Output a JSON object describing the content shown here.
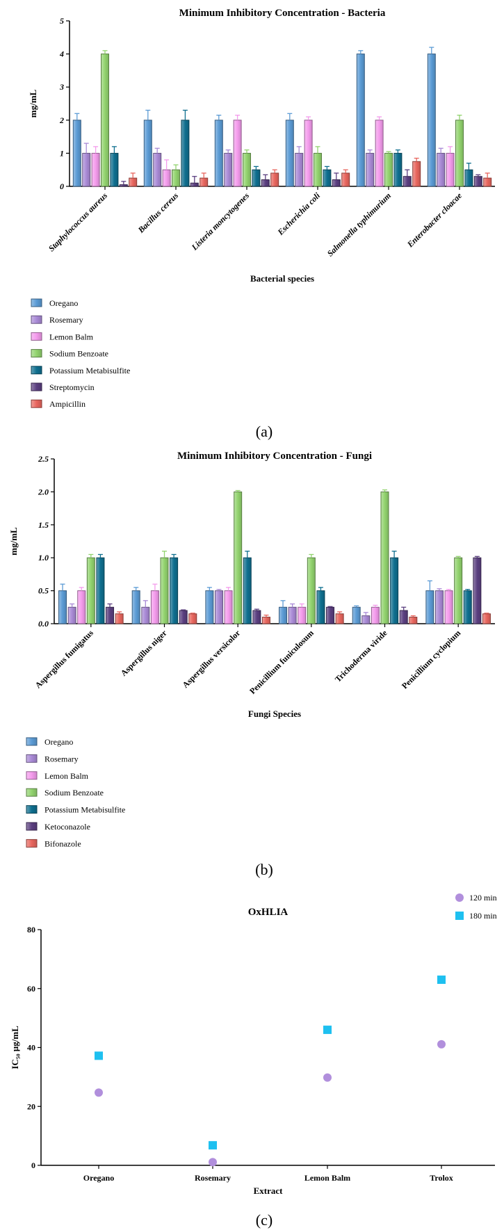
{
  "panels": {
    "a_label": "(a)",
    "b_label": "(b)",
    "c_label": "(c)"
  },
  "colors": {
    "Oregano": "#5b9bd5",
    "Rosemary": "#a98ad6",
    "Lemon Balm": "#f49bec",
    "Sodium Benzoate": "#92d36e",
    "Potassium Metabisulfite": "#0f6f8f",
    "Streptomycin": "#5b3f80",
    "Ampicillin": "#e8665e",
    "Ketoconazole": "#5b3f80",
    "Bifonazole": "#e8665e",
    "scatter_120": "#b18fdc",
    "scatter_180": "#1ec0f0"
  },
  "chart_data": [
    {
      "type": "bar",
      "title": "Minimum Inhibitory Concentration - Bacteria",
      "xlabel": "Bacterial species",
      "ylabel": "mg/mL",
      "ylim": [
        0,
        5
      ],
      "yticks": [
        "0",
        "1",
        "2",
        "3",
        "4",
        "5"
      ],
      "grid": false,
      "legend": "bottom-left",
      "categories": [
        "Staphylococcus aureus",
        "Bacillus cereus",
        "Listeria moncytogenes",
        "Escherichia coli",
        "Salmonella typhimurium",
        "Enterobacter cloacae"
      ],
      "series": [
        {
          "name": "Oregano",
          "values": [
            2,
            2,
            2,
            2,
            4,
            4
          ],
          "errors": [
            0.2,
            0.3,
            0.15,
            0.2,
            0.1,
            0.2
          ]
        },
        {
          "name": "Rosemary",
          "values": [
            1,
            1,
            1,
            1,
            1,
            1
          ],
          "errors": [
            0.3,
            0.15,
            0.1,
            0.2,
            0.1,
            0.15
          ]
        },
        {
          "name": "Lemon Balm",
          "values": [
            1,
            0.5,
            2,
            2,
            2,
            1
          ],
          "errors": [
            0.2,
            0.3,
            0.15,
            0.1,
            0.1,
            0.2
          ]
        },
        {
          "name": "Sodium Benzoate",
          "values": [
            4,
            0.5,
            1,
            1,
            1,
            2
          ],
          "errors": [
            0.1,
            0.15,
            0.1,
            0.2,
            0.05,
            0.15
          ]
        },
        {
          "name": "Potassium Metabisulfite",
          "values": [
            1,
            2,
            0.5,
            0.5,
            1,
            0.5
          ],
          "errors": [
            0.2,
            0.3,
            0.1,
            0.1,
            0.1,
            0.2
          ]
        },
        {
          "name": "Streptomycin",
          "values": [
            0.05,
            0.1,
            0.2,
            0.2,
            0.3,
            0.3
          ],
          "errors": [
            0.1,
            0.2,
            0.15,
            0.2,
            0.2,
            0.05
          ]
        },
        {
          "name": "Ampicillin",
          "values": [
            0.25,
            0.25,
            0.4,
            0.4,
            0.75,
            0.25
          ],
          "errors": [
            0.15,
            0.15,
            0.1,
            0.1,
            0.1,
            0.15
          ]
        }
      ]
    },
    {
      "type": "bar",
      "title": "Minimum Inhibitory Concentration - Fungi",
      "xlabel": "Fungi Species",
      "ylabel": "mg/mL",
      "ylim": [
        0,
        2.5
      ],
      "yticks": [
        "0.0",
        "0.5",
        "1.0",
        "1.5",
        "2.0",
        "2.5"
      ],
      "grid": false,
      "legend": "bottom-left",
      "categories": [
        "Aspergillus fumigatus",
        "Aspergillus niger",
        "Aspergillus versicolor",
        "Penicillium funiculosum",
        "Trichoderma viride",
        "Penicillium cyclopium"
      ],
      "series": [
        {
          "name": "Oregano",
          "values": [
            0.5,
            0.5,
            0.5,
            0.25,
            0.25,
            0.5
          ],
          "errors": [
            0.1,
            0.05,
            0.05,
            0.1,
            0.02,
            0.15
          ]
        },
        {
          "name": "Rosemary",
          "values": [
            0.25,
            0.25,
            0.5,
            0.25,
            0.12,
            0.5
          ],
          "errors": [
            0.05,
            0.1,
            0.02,
            0.05,
            0.05,
            0.03
          ]
        },
        {
          "name": "Lemon Balm",
          "values": [
            0.5,
            0.5,
            0.5,
            0.25,
            0.25,
            0.5
          ],
          "errors": [
            0.05,
            0.1,
            0.05,
            0.05,
            0.03,
            0.02
          ]
        },
        {
          "name": "Sodium Benzoate",
          "values": [
            1,
            1,
            2,
            1,
            2,
            1
          ],
          "errors": [
            0.05,
            0.1,
            0.02,
            0.05,
            0.03,
            0.02
          ]
        },
        {
          "name": "Potassium Metabisulfite",
          "values": [
            1,
            1,
            1,
            0.5,
            1,
            0.5
          ],
          "errors": [
            0.05,
            0.05,
            0.1,
            0.05,
            0.1,
            0.02
          ]
        },
        {
          "name": "Ketoconazole",
          "values": [
            0.25,
            0.2,
            0.2,
            0.25,
            0.2,
            1
          ],
          "errors": [
            0.05,
            0.01,
            0.02,
            0.01,
            0.05,
            0.02
          ]
        },
        {
          "name": "Bifonazole",
          "values": [
            0.15,
            0.15,
            0.1,
            0.15,
            0.1,
            0.15
          ],
          "errors": [
            0.03,
            0.01,
            0.03,
            0.03,
            0.02,
            0.01
          ]
        }
      ]
    },
    {
      "type": "scatter",
      "title": "OxHLIA",
      "xlabel": "Extract",
      "ylabel": "IC₅₀ μg/mL",
      "ylim": [
        0,
        80
      ],
      "yticks": [
        "0",
        "20",
        "40",
        "60",
        "80"
      ],
      "grid": false,
      "legend": "top-right",
      "categories": [
        "Oregano",
        "Rosemary",
        "Lemon Balm",
        "Trolox"
      ],
      "series": [
        {
          "name": "120 min",
          "values": [
            24.7,
            1.1,
            29.8,
            41.1
          ]
        },
        {
          "name": "180 min",
          "values": [
            37.2,
            6.8,
            46.0,
            63.0
          ]
        }
      ]
    }
  ]
}
